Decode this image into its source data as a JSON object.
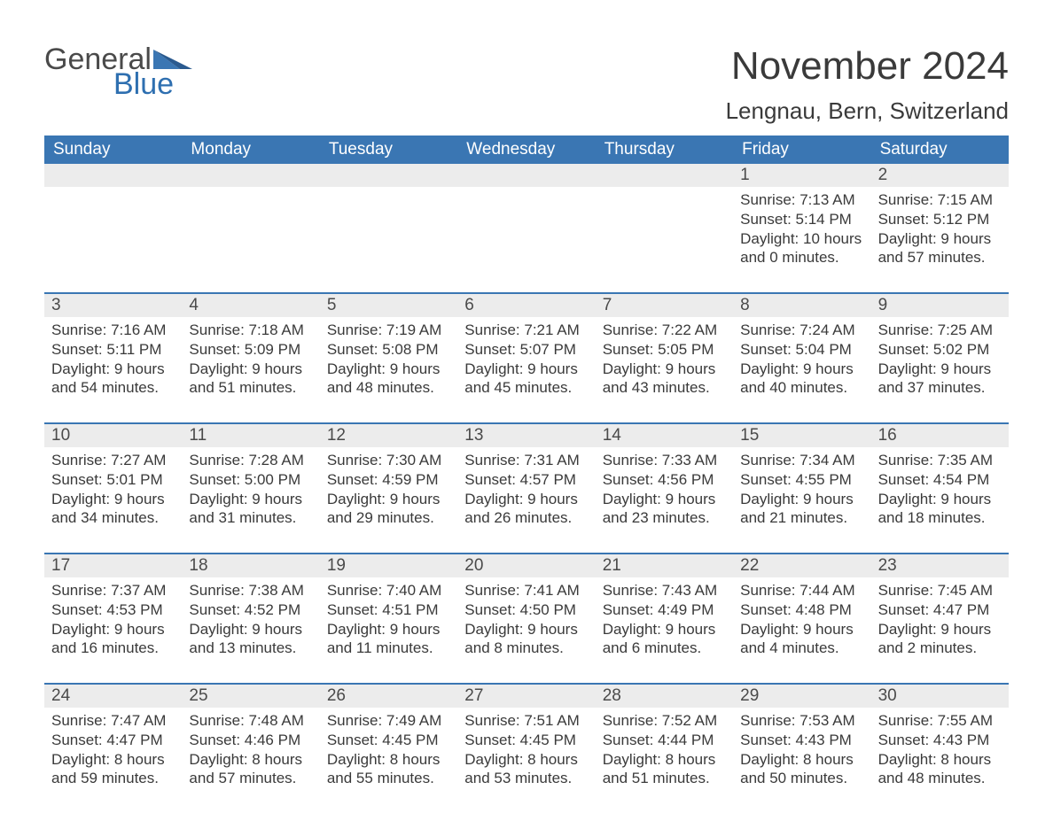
{
  "logo": {
    "text1": "General",
    "text2": "Blue"
  },
  "title": "November 2024",
  "location": "Lengnau, Bern, Switzerland",
  "colors": {
    "header_bg": "#3a76b3",
    "header_text": "#ffffff",
    "daynum_bg": "#ececec",
    "body_text": "#3a3a3a",
    "logo_blue": "#2e6fb0",
    "week_border": "#3a76b3",
    "background": "#ffffff"
  },
  "fonts": {
    "title_size_pt": 33,
    "location_size_pt": 20,
    "header_size_pt": 14,
    "daynum_size_pt": 14,
    "body_size_pt": 13
  },
  "type": "table",
  "columns": [
    "Sunday",
    "Monday",
    "Tuesday",
    "Wednesday",
    "Thursday",
    "Friday",
    "Saturday"
  ],
  "weeks": [
    [
      null,
      null,
      null,
      null,
      null,
      {
        "n": "1",
        "sunrise": "7:13 AM",
        "sunset": "5:14 PM",
        "dl1": "10 hours",
        "dl2": "and 0 minutes."
      },
      {
        "n": "2",
        "sunrise": "7:15 AM",
        "sunset": "5:12 PM",
        "dl1": "9 hours",
        "dl2": "and 57 minutes."
      }
    ],
    [
      {
        "n": "3",
        "sunrise": "7:16 AM",
        "sunset": "5:11 PM",
        "dl1": "9 hours",
        "dl2": "and 54 minutes."
      },
      {
        "n": "4",
        "sunrise": "7:18 AM",
        "sunset": "5:09 PM",
        "dl1": "9 hours",
        "dl2": "and 51 minutes."
      },
      {
        "n": "5",
        "sunrise": "7:19 AM",
        "sunset": "5:08 PM",
        "dl1": "9 hours",
        "dl2": "and 48 minutes."
      },
      {
        "n": "6",
        "sunrise": "7:21 AM",
        "sunset": "5:07 PM",
        "dl1": "9 hours",
        "dl2": "and 45 minutes."
      },
      {
        "n": "7",
        "sunrise": "7:22 AM",
        "sunset": "5:05 PM",
        "dl1": "9 hours",
        "dl2": "and 43 minutes."
      },
      {
        "n": "8",
        "sunrise": "7:24 AM",
        "sunset": "5:04 PM",
        "dl1": "9 hours",
        "dl2": "and 40 minutes."
      },
      {
        "n": "9",
        "sunrise": "7:25 AM",
        "sunset": "5:02 PM",
        "dl1": "9 hours",
        "dl2": "and 37 minutes."
      }
    ],
    [
      {
        "n": "10",
        "sunrise": "7:27 AM",
        "sunset": "5:01 PM",
        "dl1": "9 hours",
        "dl2": "and 34 minutes."
      },
      {
        "n": "11",
        "sunrise": "7:28 AM",
        "sunset": "5:00 PM",
        "dl1": "9 hours",
        "dl2": "and 31 minutes."
      },
      {
        "n": "12",
        "sunrise": "7:30 AM",
        "sunset": "4:59 PM",
        "dl1": "9 hours",
        "dl2": "and 29 minutes."
      },
      {
        "n": "13",
        "sunrise": "7:31 AM",
        "sunset": "4:57 PM",
        "dl1": "9 hours",
        "dl2": "and 26 minutes."
      },
      {
        "n": "14",
        "sunrise": "7:33 AM",
        "sunset": "4:56 PM",
        "dl1": "9 hours",
        "dl2": "and 23 minutes."
      },
      {
        "n": "15",
        "sunrise": "7:34 AM",
        "sunset": "4:55 PM",
        "dl1": "9 hours",
        "dl2": "and 21 minutes."
      },
      {
        "n": "16",
        "sunrise": "7:35 AM",
        "sunset": "4:54 PM",
        "dl1": "9 hours",
        "dl2": "and 18 minutes."
      }
    ],
    [
      {
        "n": "17",
        "sunrise": "7:37 AM",
        "sunset": "4:53 PM",
        "dl1": "9 hours",
        "dl2": "and 16 minutes."
      },
      {
        "n": "18",
        "sunrise": "7:38 AM",
        "sunset": "4:52 PM",
        "dl1": "9 hours",
        "dl2": "and 13 minutes."
      },
      {
        "n": "19",
        "sunrise": "7:40 AM",
        "sunset": "4:51 PM",
        "dl1": "9 hours",
        "dl2": "and 11 minutes."
      },
      {
        "n": "20",
        "sunrise": "7:41 AM",
        "sunset": "4:50 PM",
        "dl1": "9 hours",
        "dl2": "and 8 minutes."
      },
      {
        "n": "21",
        "sunrise": "7:43 AM",
        "sunset": "4:49 PM",
        "dl1": "9 hours",
        "dl2": "and 6 minutes."
      },
      {
        "n": "22",
        "sunrise": "7:44 AM",
        "sunset": "4:48 PM",
        "dl1": "9 hours",
        "dl2": "and 4 minutes."
      },
      {
        "n": "23",
        "sunrise": "7:45 AM",
        "sunset": "4:47 PM",
        "dl1": "9 hours",
        "dl2": "and 2 minutes."
      }
    ],
    [
      {
        "n": "24",
        "sunrise": "7:47 AM",
        "sunset": "4:47 PM",
        "dl1": "8 hours",
        "dl2": "and 59 minutes."
      },
      {
        "n": "25",
        "sunrise": "7:48 AM",
        "sunset": "4:46 PM",
        "dl1": "8 hours",
        "dl2": "and 57 minutes."
      },
      {
        "n": "26",
        "sunrise": "7:49 AM",
        "sunset": "4:45 PM",
        "dl1": "8 hours",
        "dl2": "and 55 minutes."
      },
      {
        "n": "27",
        "sunrise": "7:51 AM",
        "sunset": "4:45 PM",
        "dl1": "8 hours",
        "dl2": "and 53 minutes."
      },
      {
        "n": "28",
        "sunrise": "7:52 AM",
        "sunset": "4:44 PM",
        "dl1": "8 hours",
        "dl2": "and 51 minutes."
      },
      {
        "n": "29",
        "sunrise": "7:53 AM",
        "sunset": "4:43 PM",
        "dl1": "8 hours",
        "dl2": "and 50 minutes."
      },
      {
        "n": "30",
        "sunrise": "7:55 AM",
        "sunset": "4:43 PM",
        "dl1": "8 hours",
        "dl2": "and 48 minutes."
      }
    ]
  ],
  "labels": {
    "sunrise": "Sunrise: ",
    "sunset": "Sunset: ",
    "daylight": "Daylight: "
  }
}
